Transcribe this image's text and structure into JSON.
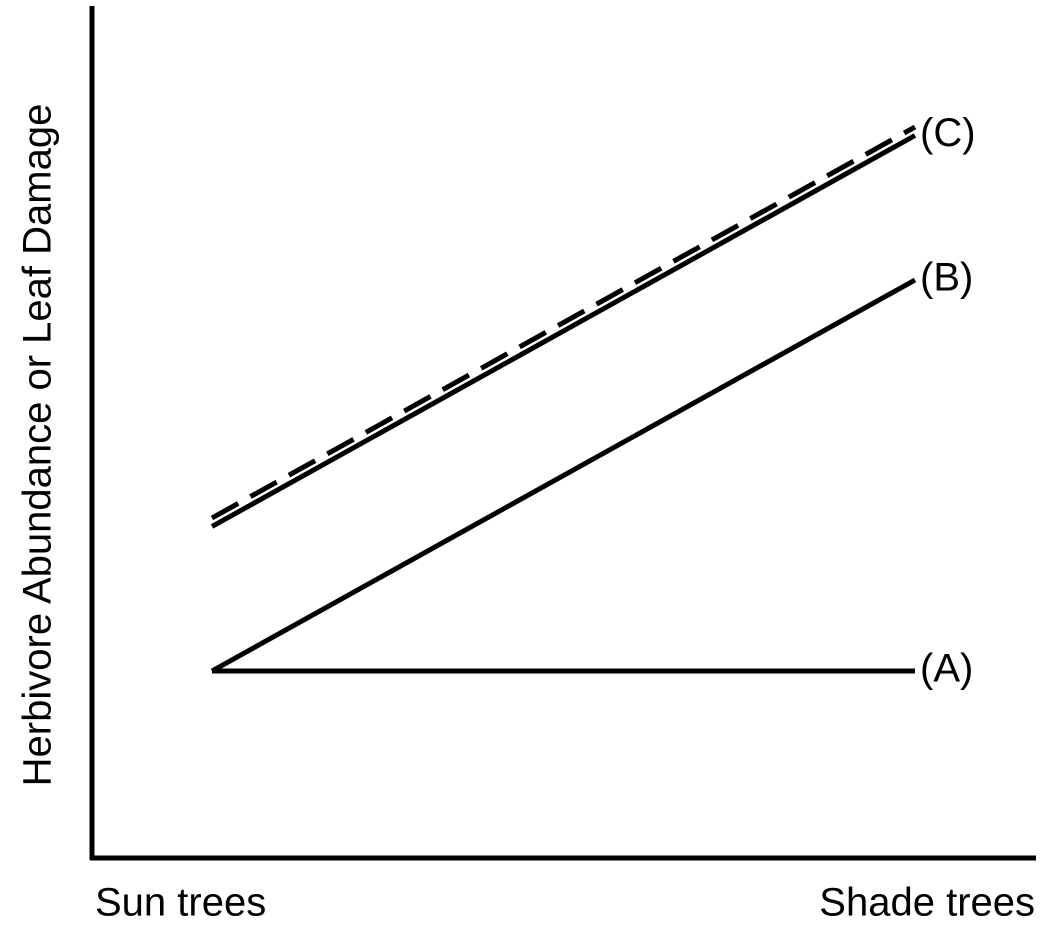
{
  "chart_data": {
    "type": "line",
    "y_label": "Herbivore Abundance or Leaf Damage",
    "categories": [
      "Sun trees",
      "Shade trees"
    ],
    "ylim": [
      0,
      100
    ],
    "series": [
      {
        "name": "(A)",
        "color": "#000000",
        "line_style": "solid",
        "values": [
          22,
          22
        ]
      },
      {
        "name": "(B)",
        "color": "#000000",
        "line_style": "solid",
        "values": [
          22,
          68
        ]
      },
      {
        "name": "(C)",
        "color": "#000000",
        "line_style": "solid",
        "values": [
          39,
          85
        ]
      },
      {
        "color": "#000000",
        "line_style": "dashed",
        "values": [
          40,
          86
        ]
      }
    ]
  }
}
